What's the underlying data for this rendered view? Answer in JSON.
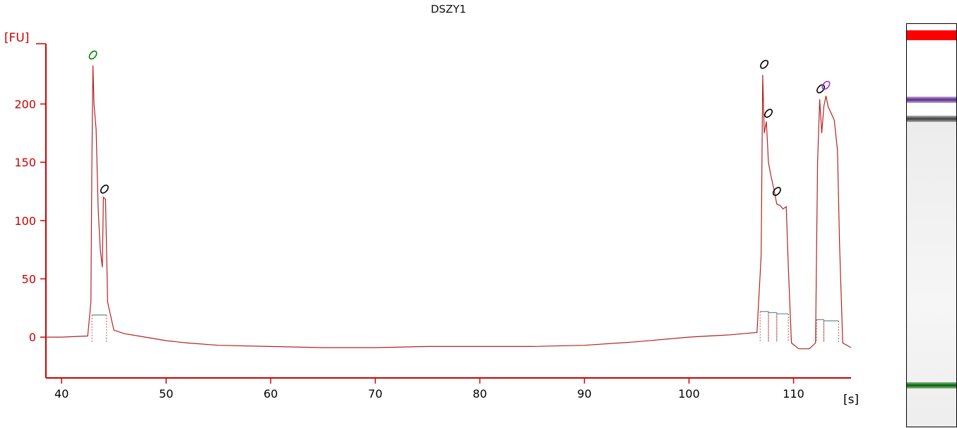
{
  "chart_data": {
    "type": "line",
    "title": "DSZY1",
    "ylabel": "[FU]",
    "xlabel": "[s]",
    "xlim": [
      38.5,
      115.5
    ],
    "ylim": [
      -35,
      265
    ],
    "x_ticks": [
      40,
      50,
      60,
      70,
      80,
      90,
      100,
      110
    ],
    "y_ticks": [
      0,
      50,
      100,
      150,
      200
    ],
    "colors": {
      "axis": "#cc0000",
      "trace": "#b22222",
      "baseline": "#5f8f8f",
      "green": "#008000",
      "black": "#000000",
      "purple": "#9932cc"
    },
    "series": [
      {
        "x": [
          38.5,
          40,
          42.5,
          42.8,
          42.9,
          43.0,
          43.1,
          43.3,
          43.5,
          43.7,
          43.9,
          44.0,
          44.2,
          44.4,
          45,
          46,
          48,
          50,
          52,
          55,
          60,
          65,
          70,
          75,
          80,
          85,
          90,
          95,
          100,
          104,
          106.5,
          106.9,
          107.05,
          107.2,
          107.4,
          107.6,
          107.8,
          108.1,
          108.4,
          108.7,
          109.0,
          109.3,
          109.5,
          109.8,
          110.5,
          111.5,
          112.1,
          112.3,
          112.5,
          112.7,
          112.9,
          113.1,
          113.3,
          113.6,
          113.9,
          114.2,
          114.4,
          114.7,
          115.5
        ],
        "y": [
          0,
          0,
          1,
          30,
          150,
          233,
          200,
          178,
          110,
          75,
          60,
          120,
          118,
          30,
          6,
          3,
          0,
          -3,
          -5,
          -7,
          -8,
          -9,
          -9,
          -8,
          -8,
          -8,
          -7,
          -4,
          0,
          2,
          4,
          70,
          225,
          175,
          185,
          150,
          140,
          128,
          114,
          113,
          110,
          112,
          60,
          -5,
          -10,
          -10,
          -5,
          150,
          204,
          175,
          198,
          207,
          198,
          192,
          186,
          160,
          80,
          -5,
          -9
        ]
      }
    ],
    "peak_markers": [
      {
        "x": 43.0,
        "y": 242,
        "color": "green"
      },
      {
        "x": 44.1,
        "y": 127,
        "color": "black"
      },
      {
        "x": 107.2,
        "y": 234,
        "color": "black"
      },
      {
        "x": 107.6,
        "y": 192,
        "color": "black"
      },
      {
        "x": 108.4,
        "y": 125,
        "color": "black"
      },
      {
        "x": 112.6,
        "y": 213,
        "color": "black"
      },
      {
        "x": 113.1,
        "y": 216,
        "color": "purple"
      }
    ],
    "integration_baselines": [
      {
        "x1": 42.9,
        "x2": 44.3,
        "y": 19
      },
      {
        "x1": 106.8,
        "x2": 107.6,
        "y": 22
      },
      {
        "x1": 107.6,
        "x2": 108.4,
        "y": 21
      },
      {
        "x1": 108.4,
        "x2": 109.5,
        "y": 20
      },
      {
        "x1": 112.2,
        "x2": 112.9,
        "y": 15
      },
      {
        "x1": 112.9,
        "x2": 114.3,
        "y": 14
      }
    ],
    "gel_bands": [
      {
        "position": 0.024,
        "color": "#ff0000"
      },
      {
        "position": 0.188,
        "color": "#5c2a8c"
      },
      {
        "position": 0.235,
        "color": "#404040"
      },
      {
        "position": 0.895,
        "color": "#006400"
      }
    ]
  }
}
